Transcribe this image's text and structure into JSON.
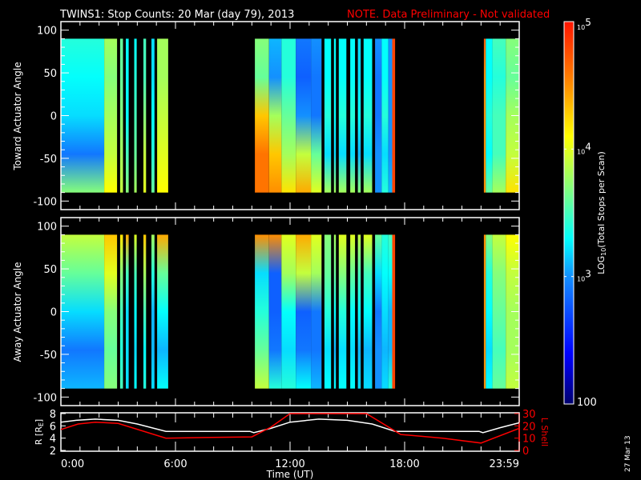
{
  "title": {
    "main": "TWINS1: Stop Counts: 20 Mar (day  79), 2013",
    "note": "NOTE. Data Preliminary - Not validated",
    "note_color": "#ff0000"
  },
  "footer_date": "27 Mar 13",
  "chart_data": [
    {
      "type": "heatmap",
      "name": "toward",
      "ylabel": "Toward Actuator Angle",
      "ylim": [
        -110,
        110
      ],
      "yticks": [
        "100",
        "50",
        "0",
        "-50",
        "-100"
      ],
      "ytick_values": [
        100,
        50,
        0,
        -50,
        -100
      ],
      "angle_nodes": [
        90,
        45,
        0,
        -45,
        -90
      ]
    },
    {
      "type": "heatmap",
      "name": "away",
      "ylabel": "Away Actuator Angle",
      "ylim": [
        -110,
        110
      ],
      "yticks": [
        "100",
        "50",
        "0",
        "-50",
        "-100"
      ],
      "ytick_values": [
        100,
        50,
        0,
        -50,
        -100
      ],
      "angle_nodes": [
        90,
        45,
        0,
        -45,
        -90
      ]
    },
    {
      "type": "line",
      "name": "orbit",
      "ylabel_left": "R [R",
      "ylabel_left_sub": "E",
      "ylabel_left_end": "]",
      "ylabel_right": "L Shell",
      "ylim_left": [
        2,
        8
      ],
      "ylim_right": [
        0,
        30
      ],
      "yticks_left": [
        "8",
        "6",
        "4",
        "2"
      ],
      "yticks_left_values": [
        8,
        6,
        4,
        2
      ],
      "yticks_right": [
        "30",
        "20",
        "10",
        "0"
      ],
      "yticks_right_values": [
        30,
        20,
        10,
        0
      ],
      "series": [
        {
          "name": "R",
          "color": "#ffffff",
          "x": [
            0,
            0.8,
            1.8,
            3.0,
            4.0,
            5.5,
            7.5,
            9.9,
            10.1,
            11.0,
            12.0,
            13.5,
            15.0,
            16.3,
            17.5,
            20.0,
            21.9,
            22.1,
            23.0,
            24.0
          ],
          "y": [
            6.6,
            6.9,
            7.1,
            6.9,
            6.3,
            5.1,
            5.1,
            5.1,
            4.9,
            5.6,
            6.6,
            7.1,
            6.9,
            6.3,
            5.1,
            5.1,
            5.1,
            4.9,
            5.7,
            6.5
          ]
        },
        {
          "name": "L Shell",
          "color": "#ff0000",
          "x": [
            0,
            0.9,
            1.8,
            3.0,
            5.5,
            7.5,
            10.0,
            11.0,
            12.0,
            16.0,
            17.8,
            20.0,
            22.0,
            24.0
          ],
          "y": [
            17,
            21.5,
            23,
            22,
            10,
            10.5,
            11,
            19,
            30,
            30,
            13,
            10,
            6,
            18
          ]
        }
      ]
    }
  ],
  "time_axis": {
    "label": "Time (UT)",
    "xlim": [
      0,
      24
    ],
    "ticks": [
      "0:00",
      "6:00",
      "12:00",
      "18:00",
      "23:59"
    ],
    "tick_values": [
      0,
      6,
      12,
      18,
      24
    ]
  },
  "colorbar": {
    "label": "LOG",
    "label_sub": "10",
    "label_rest": "(Total Stops per Scan)",
    "range_log10": [
      2,
      5
    ],
    "ticks": [
      {
        "base": "10",
        "exp": "5",
        "value": 5
      },
      {
        "base": "10",
        "exp": "4",
        "value": 4
      },
      {
        "base": "10",
        "exp": "3",
        "value": 3
      },
      {
        "base": "100",
        "exp": "",
        "value": 2
      }
    ]
  },
  "spectrogram_segments": [
    {
      "t": [
        0.0,
        2.27
      ],
      "toward": [
        3.4,
        3.3,
        3.2,
        2.9,
        3.7
      ],
      "away": [
        3.9,
        3.6,
        3.2,
        2.9,
        3.1
      ]
    },
    {
      "t": [
        2.27,
        2.94
      ],
      "toward": [
        3.8,
        3.7,
        3.8,
        3.9,
        4.1
      ],
      "away": [
        4.3,
        4.0,
        3.7,
        3.6,
        3.7
      ]
    },
    {
      "t": [
        3.1,
        3.25
      ],
      "toward": [
        3.6,
        3.6,
        3.7,
        3.8,
        3.9
      ],
      "away": [
        4.2,
        3.7,
        3.5,
        3.4,
        3.5
      ]
    },
    {
      "t": [
        3.4,
        3.55
      ],
      "toward": [
        3.3,
        3.3,
        3.3,
        3.5,
        3.7
      ],
      "away": [
        4.4,
        3.5,
        3.2,
        3.2,
        3.2
      ]
    },
    {
      "t": [
        3.84,
        3.97
      ],
      "toward": [
        3.3,
        3.4,
        3.5,
        3.6,
        3.8
      ],
      "away": [
        4.0,
        3.5,
        3.3,
        3.2,
        3.3
      ]
    },
    {
      "t": [
        4.32,
        4.46
      ],
      "toward": [
        3.5,
        3.5,
        3.7,
        3.9,
        4.0
      ],
      "away": [
        4.3,
        3.8,
        3.5,
        3.3,
        3.4
      ]
    },
    {
      "t": [
        4.74,
        4.9
      ],
      "toward": [
        3.2,
        3.2,
        3.3,
        3.4,
        3.6
      ],
      "away": [
        3.8,
        3.4,
        3.1,
        3.1,
        3.2
      ]
    },
    {
      "t": [
        5.04,
        5.62
      ],
      "toward": [
        3.8,
        3.8,
        3.9,
        4.0,
        4.1
      ],
      "away": [
        4.4,
        3.6,
        3.3,
        3.1,
        3.3
      ]
    },
    {
      "t": [
        10.16,
        10.9
      ],
      "toward": [
        3.7,
        3.6,
        4.3,
        4.6,
        4.6
      ],
      "away": [
        4.5,
        3.2,
        3.4,
        3.6,
        3.9
      ]
    },
    {
      "t": [
        10.9,
        11.55
      ],
      "toward": [
        3.1,
        3.0,
        3.8,
        4.3,
        4.5
      ],
      "away": [
        4.5,
        2.8,
        2.8,
        2.9,
        3.4
      ]
    },
    {
      "t": [
        11.55,
        12.3
      ],
      "toward": [
        3.4,
        3.4,
        3.6,
        3.8,
        4.2
      ],
      "away": [
        4.0,
        3.8,
        3.3,
        3.2,
        3.4
      ]
    },
    {
      "t": [
        12.3,
        13.1
      ],
      "toward": [
        2.9,
        2.8,
        3.0,
        3.9,
        4.4
      ],
      "away": [
        4.4,
        3.9,
        2.8,
        2.9,
        3.3
      ]
    },
    {
      "t": [
        13.1,
        13.65
      ],
      "toward": [
        3.0,
        2.9,
        2.9,
        3.6,
        4.0
      ],
      "away": [
        4.0,
        3.8,
        2.9,
        2.9,
        3.1
      ]
    },
    {
      "t": [
        13.8,
        14.15
      ],
      "toward": [
        3.3,
        3.3,
        3.4,
        3.2,
        3.8
      ],
      "away": [
        3.7,
        3.6,
        3.4,
        3.2,
        3.3
      ]
    },
    {
      "t": [
        14.3,
        14.4
      ],
      "toward": [
        3.3,
        3.3,
        3.3,
        3.2,
        3.8
      ],
      "away": [
        3.8,
        3.6,
        3.3,
        3.1,
        3.3
      ]
    },
    {
      "t": [
        14.55,
        14.95
      ],
      "toward": [
        3.3,
        3.3,
        3.4,
        3.2,
        3.8
      ],
      "away": [
        4.0,
        3.7,
        3.4,
        3.2,
        3.3
      ]
    },
    {
      "t": [
        15.15,
        15.4
      ],
      "toward": [
        3.3,
        3.3,
        3.4,
        3.2,
        3.8
      ],
      "away": [
        4.0,
        3.6,
        3.3,
        3.2,
        3.3
      ]
    },
    {
      "t": [
        15.55,
        15.7
      ],
      "toward": [
        3.2,
        3.2,
        3.3,
        3.1,
        3.7
      ],
      "away": [
        3.9,
        3.5,
        3.3,
        3.1,
        3.2
      ]
    },
    {
      "t": [
        15.85,
        16.3
      ],
      "toward": [
        3.3,
        3.3,
        3.4,
        3.2,
        3.8
      ],
      "away": [
        4.0,
        3.5,
        3.3,
        3.1,
        3.2
      ]
    },
    {
      "t": [
        16.45,
        16.8
      ],
      "toward": [
        3.0,
        2.9,
        2.9,
        3.0,
        3.0
      ],
      "away": [
        3.6,
        3.2,
        2.9,
        3.0,
        3.0
      ]
    },
    {
      "t": [
        16.8,
        17.15
      ],
      "toward": [
        3.3,
        3.3,
        3.4,
        3.2,
        3.4
      ],
      "away": [
        3.4,
        3.3,
        3.2,
        3.1,
        3.2
      ]
    },
    {
      "t": [
        17.15,
        17.35
      ],
      "toward": [
        3.0,
        3.0,
        3.0,
        3.0,
        3.1
      ],
      "away": [
        3.5,
        3.3,
        3.1,
        3.1,
        3.4
      ]
    },
    {
      "t": [
        17.35,
        17.5
      ],
      "toward": [
        4.8,
        4.8,
        4.8,
        4.8,
        4.8
      ],
      "away": [
        4.8,
        4.8,
        4.8,
        4.8,
        4.8
      ]
    },
    {
      "t": [
        22.15,
        22.25
      ],
      "toward": [
        4.7,
        4.5,
        4.5,
        4.5,
        4.5
      ],
      "away": [
        4.5,
        4.5,
        4.5,
        4.5,
        4.5
      ]
    },
    {
      "t": [
        22.25,
        22.6
      ],
      "toward": [
        3.3,
        3.3,
        3.4,
        3.3,
        3.6
      ],
      "away": [
        3.7,
        3.4,
        3.3,
        3.2,
        3.3
      ]
    },
    {
      "t": [
        22.6,
        23.3
      ],
      "toward": [
        3.5,
        3.4,
        3.5,
        3.5,
        3.8
      ],
      "away": [
        3.9,
        3.7,
        3.6,
        3.5,
        3.6
      ]
    },
    {
      "t": [
        23.3,
        24.0
      ],
      "toward": [
        3.7,
        3.6,
        3.8,
        3.9,
        4.2
      ],
      "away": [
        4.1,
        3.9,
        3.8,
        3.8,
        3.9
      ]
    }
  ]
}
